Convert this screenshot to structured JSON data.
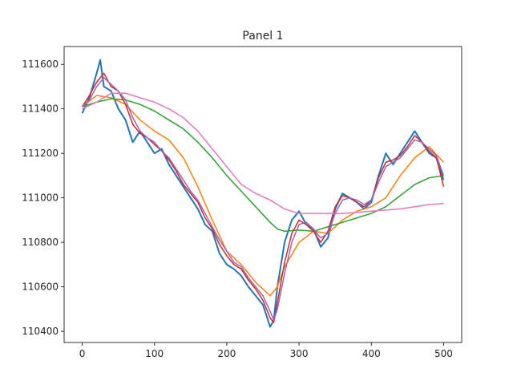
{
  "chart_data": {
    "type": "line",
    "title": "Panel 1",
    "xlabel": "",
    "ylabel": "",
    "xlim": [
      -25,
      525
    ],
    "ylim": [
      110350,
      111680
    ],
    "xticks": [
      0,
      100,
      200,
      300,
      400,
      500
    ],
    "yticks": [
      110400,
      110600,
      110800,
      111000,
      111200,
      111400,
      111600
    ],
    "grid": false,
    "legend": "none",
    "series": [
      {
        "color": "#1f77b4",
        "stroke_width": 2,
        "x": [
          0,
          10,
          20,
          25,
          30,
          40,
          50,
          60,
          70,
          80,
          90,
          100,
          110,
          120,
          130,
          140,
          150,
          160,
          170,
          180,
          190,
          200,
          210,
          220,
          230,
          240,
          250,
          260,
          265,
          270,
          280,
          290,
          300,
          310,
          320,
          330,
          340,
          350,
          360,
          370,
          380,
          390,
          400,
          410,
          420,
          430,
          440,
          450,
          460,
          470,
          480,
          490,
          500
        ],
        "y": [
          111380,
          111450,
          111560,
          111620,
          111500,
          111480,
          111400,
          111350,
          111250,
          111300,
          111250,
          111200,
          111220,
          111150,
          111100,
          111050,
          111000,
          110950,
          110880,
          110850,
          110750,
          110700,
          110680,
          110650,
          110600,
          110560,
          110520,
          110420,
          110450,
          110600,
          110800,
          110900,
          110940,
          110880,
          110860,
          110780,
          110820,
          110950,
          111020,
          111000,
          110980,
          110950,
          110980,
          111100,
          111200,
          111150,
          111200,
          111250,
          111300,
          111250,
          111200,
          111180,
          111080
        ]
      },
      {
        "color": "#ff7f0e",
        "stroke_width": 1.5,
        "x": [
          0,
          20,
          40,
          60,
          80,
          100,
          120,
          140,
          160,
          180,
          200,
          220,
          240,
          260,
          270,
          280,
          300,
          320,
          340,
          360,
          380,
          400,
          420,
          440,
          460,
          480,
          500
        ],
        "y": [
          111410,
          111460,
          111450,
          111420,
          111350,
          111300,
          111260,
          111180,
          111050,
          110900,
          110760,
          110700,
          110620,
          110560,
          110600,
          110690,
          110800,
          110850,
          110840,
          110900,
          110940,
          110960,
          111000,
          111100,
          111180,
          111230,
          111160
        ]
      },
      {
        "color": "#2ca02c",
        "stroke_width": 1.5,
        "x": [
          0,
          20,
          40,
          60,
          80,
          100,
          120,
          140,
          160,
          180,
          200,
          220,
          240,
          260,
          270,
          280,
          300,
          320,
          340,
          360,
          380,
          400,
          420,
          440,
          460,
          480,
          500
        ],
        "y": [
          111410,
          111430,
          111445,
          111440,
          111420,
          111390,
          111350,
          111310,
          111250,
          111180,
          111100,
          111030,
          110960,
          110890,
          110860,
          110850,
          110855,
          110850,
          110870,
          110890,
          110910,
          110930,
          110960,
          111010,
          111060,
          111090,
          111100
        ]
      },
      {
        "color": "#d62728",
        "stroke_width": 1.5,
        "x": [
          0,
          10,
          20,
          30,
          40,
          50,
          60,
          70,
          80,
          90,
          100,
          110,
          120,
          130,
          140,
          150,
          160,
          170,
          180,
          190,
          200,
          210,
          220,
          230,
          240,
          250,
          260,
          265,
          270,
          280,
          290,
          300,
          310,
          320,
          330,
          340,
          350,
          360,
          370,
          380,
          390,
          400,
          410,
          420,
          430,
          440,
          450,
          460,
          470,
          480,
          490,
          500
        ],
        "y": [
          111410,
          111460,
          111520,
          111560,
          111500,
          111480,
          111420,
          111330,
          111290,
          111270,
          111240,
          111210,
          111170,
          111120,
          111060,
          111020,
          110980,
          110910,
          110860,
          110790,
          110740,
          110700,
          110680,
          110630,
          110590,
          110540,
          110460,
          110440,
          110530,
          110710,
          110840,
          110900,
          110880,
          110850,
          110800,
          110850,
          110960,
          111010,
          111000,
          110980,
          110960,
          110990,
          111090,
          111160,
          111170,
          111190,
          111230,
          111280,
          111250,
          111210,
          111180,
          111050
        ]
      },
      {
        "color": "#9467bd",
        "stroke_width": 1.5,
        "x": [
          0,
          10,
          20,
          30,
          40,
          50,
          60,
          70,
          80,
          90,
          100,
          110,
          120,
          130,
          140,
          150,
          160,
          170,
          180,
          190,
          200,
          210,
          220,
          230,
          240,
          250,
          260,
          265,
          270,
          280,
          290,
          300,
          310,
          320,
          330,
          340,
          350,
          360,
          370,
          380,
          390,
          400,
          410,
          420,
          430,
          440,
          450,
          460,
          470,
          480,
          490,
          500
        ],
        "y": [
          111410,
          111440,
          111500,
          111540,
          111510,
          111480,
          111440,
          111360,
          111300,
          111270,
          111250,
          111210,
          111180,
          111130,
          111080,
          111030,
          110990,
          110930,
          110870,
          110810,
          110760,
          110710,
          110690,
          110640,
          110600,
          110560,
          110490,
          110450,
          110500,
          110660,
          110800,
          110880,
          110890,
          110860,
          110820,
          110840,
          110930,
          110990,
          111000,
          110990,
          110970,
          110990,
          111070,
          111140,
          111160,
          111180,
          111220,
          111260,
          111250,
          111220,
          111190,
          111100
        ]
      },
      {
        "color": "#e377c2",
        "stroke_width": 1.5,
        "x": [
          0,
          20,
          40,
          60,
          80,
          100,
          120,
          140,
          160,
          180,
          200,
          220,
          240,
          260,
          280,
          300,
          310,
          320,
          340,
          360,
          380,
          400,
          420,
          440,
          460,
          480,
          500
        ],
        "y": [
          111400,
          111430,
          111470,
          111470,
          111450,
          111430,
          111400,
          111360,
          111300,
          111220,
          111140,
          111060,
          111020,
          110990,
          110950,
          110930,
          110930,
          110930,
          110930,
          110930,
          110935,
          110940,
          110945,
          110950,
          110960,
          110970,
          110975
        ]
      }
    ]
  }
}
